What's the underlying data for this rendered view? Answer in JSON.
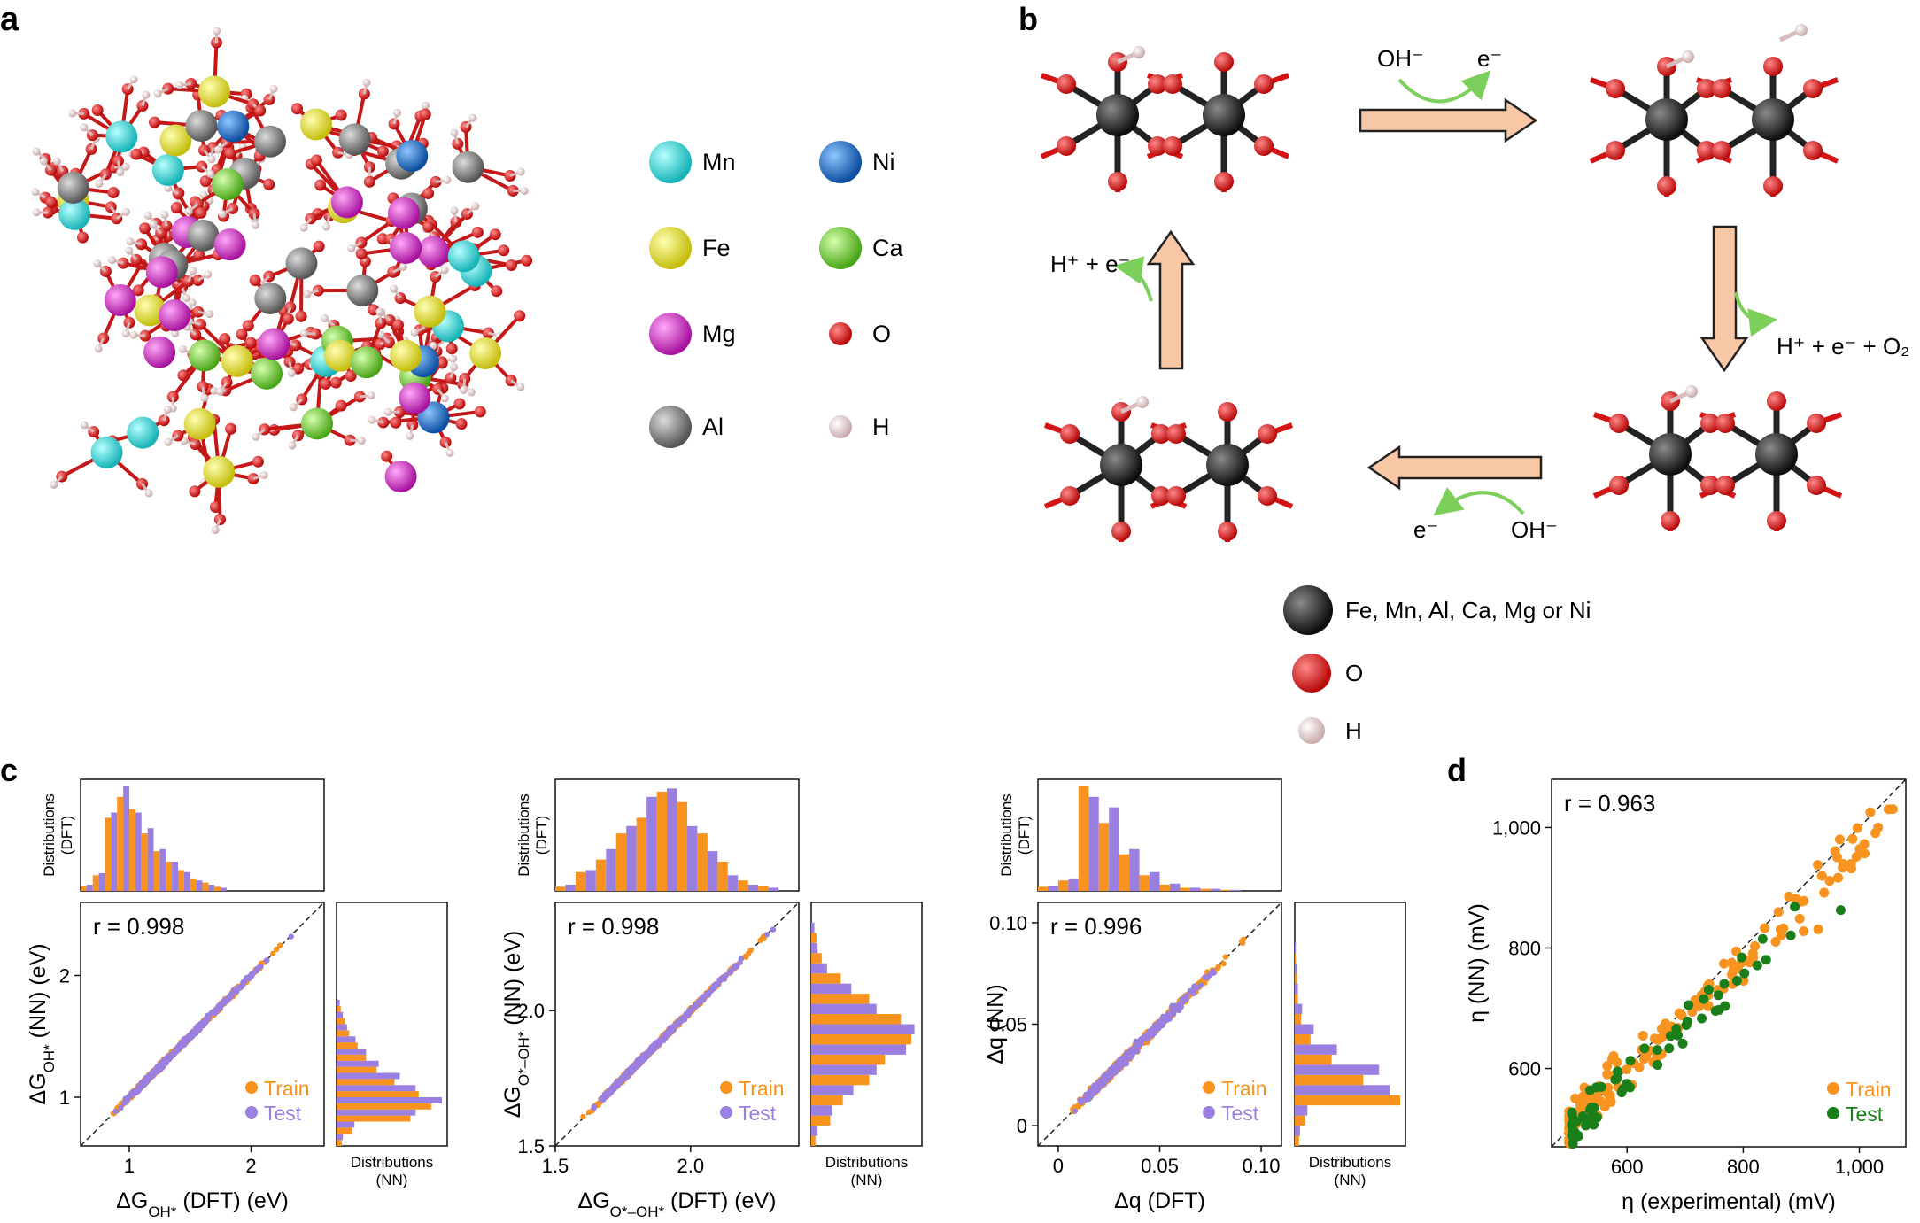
{
  "panels": {
    "a": "a",
    "b": "b",
    "c": "c",
    "d": "d"
  },
  "panel_a": {
    "legend": [
      {
        "label": "Mn",
        "color": "#2fd6d8"
      },
      {
        "label": "Ni",
        "color": "#1469c9"
      },
      {
        "label": "Fe",
        "color": "#e6e12a"
      },
      {
        "label": "Ca",
        "color": "#6fce2c"
      },
      {
        "label": "Mg",
        "color": "#d424c8"
      },
      {
        "label": "O",
        "color": "#d41414"
      },
      {
        "label": "Al",
        "color": "#7a7a7a"
      },
      {
        "label": "H",
        "color": "#f0d8d8"
      }
    ]
  },
  "panel_b": {
    "step_top_reactant": "OH⁻",
    "step_top_product": "e⁻",
    "step_right": "H⁺ + e⁻ + O₂",
    "step_bottom_reactant": "OH⁻",
    "step_bottom_product": "e⁻",
    "step_left": "H⁺ + e⁻",
    "legend": [
      {
        "label": "Fe, Mn, Al, Ca, Mg or Ni",
        "color": "#1a1a1a"
      },
      {
        "label": "O",
        "color": "#d41414"
      },
      {
        "label": "H",
        "color": "#f0d8d8"
      }
    ]
  },
  "colors": {
    "train": "#f7931e",
    "test": "#9b7fe0",
    "test_d": "#1a7f1a",
    "arrow": "#f7c7a6",
    "electron": "#7ccf5a"
  },
  "chart_data": [
    {
      "type": "scatter",
      "id": "c1",
      "r_label": "r = 0.998",
      "xlabel": "ΔG_OH* (DFT) (eV)",
      "ylabel": "ΔG_OH* (NN) (eV)",
      "xticks": [
        "1",
        "2"
      ],
      "yticks": [
        "1",
        "2"
      ],
      "xlim": [
        0.6,
        2.6
      ],
      "ylim": [
        0.6,
        2.6
      ],
      "legend": [
        "Train",
        "Test"
      ],
      "top_hist_label": "Distributions (DFT)",
      "side_hist_label": "Distributions (NN)",
      "top_hist": {
        "bins_start": 0.6,
        "bin_width": 0.1,
        "train": [
          0.05,
          0.15,
          0.7,
          0.9,
          0.78,
          0.55,
          0.38,
          0.28,
          0.2,
          0.12,
          0.08,
          0.04
        ],
        "test": [
          0.06,
          0.17,
          0.75,
          1.0,
          0.75,
          0.6,
          0.4,
          0.28,
          0.18,
          0.1,
          0.06,
          0.03
        ]
      }
    },
    {
      "type": "scatter",
      "id": "c2",
      "r_label": "r = 0.998",
      "xlabel": "ΔG_O*–OH* (DFT) (eV)",
      "ylabel": "ΔG_O*–OH* (NN) (eV)",
      "xticks": [
        "1.5",
        "2.0"
      ],
      "yticks": [
        "1.5",
        "2.0"
      ],
      "xlim": [
        1.5,
        2.4
      ],
      "ylim": [
        1.5,
        2.4
      ],
      "legend": [
        "Train",
        "Test"
      ],
      "top_hist_label": "Distributions (DFT)",
      "side_hist_label": "Distributions (NN)",
      "top_hist": {
        "bins_start": 1.5,
        "bin_width": 0.075,
        "train": [
          0.04,
          0.18,
          0.3,
          0.55,
          0.7,
          0.95,
          0.85,
          0.55,
          0.28,
          0.1,
          0.05
        ],
        "test": [
          0.06,
          0.2,
          0.4,
          0.62,
          0.9,
          0.98,
          0.62,
          0.38,
          0.15,
          0.06,
          0.03
        ]
      }
    },
    {
      "type": "scatter",
      "id": "c3",
      "r_label": "r = 0.996",
      "xlabel": "Δq (DFT)",
      "ylabel": "Δq (NN)",
      "xticks": [
        "0",
        "0.05",
        "0.10"
      ],
      "yticks": [
        "0",
        "0.05",
        "0.10"
      ],
      "xlim": [
        -0.01,
        0.11
      ],
      "ylim": [
        -0.01,
        0.11
      ],
      "legend": [
        "Train",
        "Test"
      ],
      "top_hist_label": "Distributions (DFT)",
      "side_hist_label": "Distributions (NN)",
      "top_hist": {
        "bins_start": -0.01,
        "bin_width": 0.01,
        "train": [
          0.04,
          0.1,
          1.0,
          0.65,
          0.35,
          0.15,
          0.06,
          0.03,
          0.02,
          0.01
        ],
        "test": [
          0.05,
          0.12,
          0.9,
          0.8,
          0.4,
          0.18,
          0.07,
          0.03,
          0.02,
          0.01
        ]
      }
    },
    {
      "type": "scatter",
      "id": "d",
      "r_label": "r = 0.963",
      "xlabel": "η (experimental) (mV)",
      "ylabel": "η (NN) (mV)",
      "xticks": [
        "600",
        "800",
        "1,000"
      ],
      "yticks": [
        "600",
        "800",
        "1,000"
      ],
      "xlim": [
        470,
        1080
      ],
      "ylim": [
        470,
        1080
      ],
      "legend": [
        "Train",
        "Test"
      ]
    }
  ]
}
